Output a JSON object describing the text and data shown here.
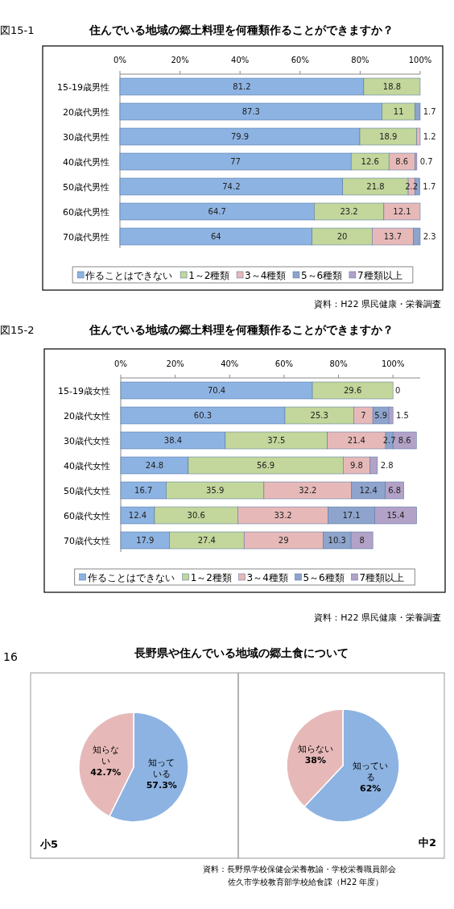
{
  "chart_data": [
    {
      "type": "bar",
      "orientation": "horizontal",
      "stacked": true,
      "title": "住んでいる地域の郷土料理を何種類作ることができますか？",
      "categories": [
        "15-19歳男性",
        "20歳代男性",
        "30歳代男性",
        "40歳代男性",
        "50歳代男性",
        "60歳代男性",
        "70歳代男性"
      ],
      "series": [
        {
          "name": "作ることはできない",
          "color": "#8db3e2",
          "values": [
            81.2,
            87.3,
            79.9,
            77,
            74.2,
            64.7,
            64
          ]
        },
        {
          "name": "1～2種類",
          "color": "#c3d69b",
          "values": [
            18.8,
            11,
            18.9,
            12.6,
            21.8,
            23.2,
            20
          ]
        },
        {
          "name": "3～4種類",
          "color": "#e6b9b8",
          "values": [
            null,
            null,
            1.2,
            8.6,
            2.2,
            12.1,
            13.7
          ]
        },
        {
          "name": "5～6種類",
          "color": "#8ea4cc",
          "values": [
            null,
            1.7,
            null,
            null,
            1.7,
            null,
            2.3
          ]
        },
        {
          "name": "7種類以上",
          "color": "#b3a2c7",
          "values": [
            null,
            null,
            null,
            0.7,
            null,
            null,
            null
          ]
        }
      ],
      "xlim": [
        0,
        100
      ],
      "xticks": [
        {
          "value": 0,
          "label": "0%"
        },
        {
          "value": 20,
          "label": "20%"
        },
        {
          "value": 40,
          "label": "40%"
        },
        {
          "value": 60,
          "label": "60%"
        },
        {
          "value": 80,
          "label": "80%"
        },
        {
          "value": 100,
          "label": "100%"
        }
      ],
      "data_labels": true,
      "legend": "bottom",
      "grid": false,
      "annotations": [
        "図15-1",
        "資料：H22 県民健康・栄養調査"
      ]
    },
    {
      "type": "bar",
      "orientation": "horizontal",
      "stacked": true,
      "title": "住んでいる地域の郷土料理を何種類作ることができますか？",
      "categories": [
        "15-19歳女性",
        "20歳代女性",
        "30歳代女性",
        "40歳代女性",
        "50歳代女性",
        "60歳代女性",
        "70歳代女性"
      ],
      "series": [
        {
          "name": "作ることはできない",
          "color": "#8db3e2",
          "values": [
            70.4,
            60.3,
            38.4,
            24.8,
            16.7,
            12.4,
            17.9
          ]
        },
        {
          "name": "1～2種類",
          "color": "#c3d69b",
          "values": [
            29.6,
            25.3,
            37.5,
            56.9,
            35.9,
            30.6,
            27.4
          ]
        },
        {
          "name": "3～4種類",
          "color": "#e6b9b8",
          "values": [
            0,
            7,
            21.4,
            9.8,
            32.2,
            33.2,
            29
          ]
        },
        {
          "name": "5～6種類",
          "color": "#8ea4cc",
          "values": [
            null,
            5.9,
            2.7,
            null,
            12.4,
            17.1,
            10.3
          ]
        },
        {
          "name": "7種類以上",
          "color": "#b3a2c7",
          "values": [
            null,
            1.5,
            8.6,
            2.8,
            6.8,
            15.4,
            8
          ]
        }
      ],
      "data_labels": true,
      "xlim": [
        0,
        110
      ],
      "xticks": [
        {
          "value": 0,
          "label": "0%"
        },
        {
          "value": 20,
          "label": "20%"
        },
        {
          "value": 40,
          "label": "40%"
        },
        {
          "value": 60,
          "label": "60%"
        },
        {
          "value": 80,
          "label": "80%"
        },
        {
          "value": 100,
          "label": "100%"
        }
      ],
      "legend": "bottom",
      "grid": false,
      "annotations": [
        "図15-2",
        "資料：H22 県民健康・栄養調査"
      ]
    },
    {
      "type": "pie",
      "title": "長野県や住んでいる地域の郷土食について",
      "categories": [
        "知っている",
        "知らない"
      ],
      "values": [
        57.3,
        42.7
      ],
      "colors": [
        "#8db3e2",
        "#e6b9b8"
      ],
      "value_labels": [
        "57.3%",
        "42.7%"
      ],
      "annotations": [
        "16",
        "小5"
      ]
    },
    {
      "type": "pie",
      "categories": [
        "知っている",
        "知らない"
      ],
      "values": [
        62,
        38
      ],
      "colors": [
        "#8db3e2",
        "#e6b9b8"
      ],
      "value_labels": [
        "62%",
        "38%"
      ],
      "annotations": [
        "中2",
        "資料：長野県学校保健会栄養教諭・学校栄養職員部会",
        "佐久市学校教育部学校給食課（H22 年度）"
      ]
    }
  ]
}
